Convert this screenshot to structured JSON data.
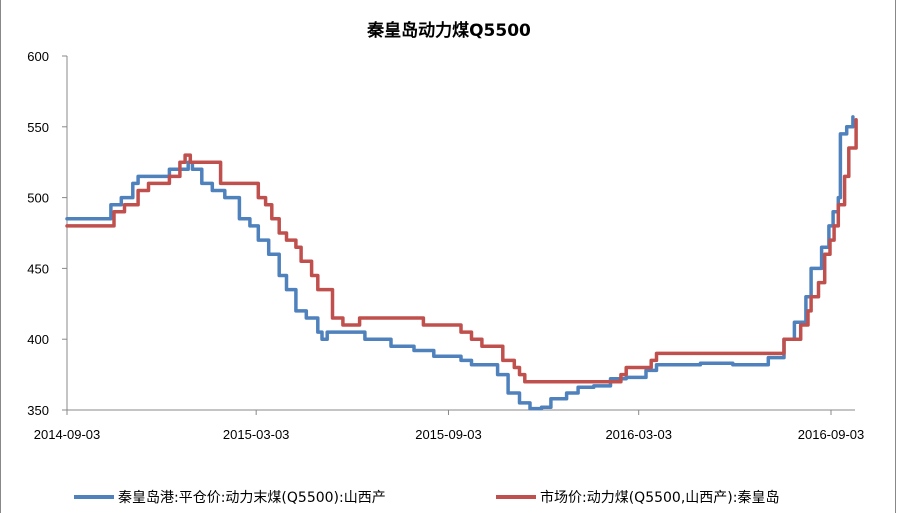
{
  "chart_data": {
    "type": "line",
    "title": "秦皇岛动力煤Q5500",
    "xlabel": "",
    "ylabel": "",
    "ylim": [
      350,
      600
    ],
    "yticks": [
      350,
      400,
      450,
      500,
      550,
      600
    ],
    "xticks": [
      "2014-09-03",
      "2015-03-03",
      "2015-09-03",
      "2016-03-03",
      "2016-09-03"
    ],
    "grid": false,
    "legend_position": "bottom",
    "series": [
      {
        "name": "秦皇岛港:平仓价:动力末煤(Q5500):山西产",
        "color": "#4F81BD",
        "points": [
          [
            "2014-09-03",
            485
          ],
          [
            "2014-10-10",
            485
          ],
          [
            "2014-10-15",
            495
          ],
          [
            "2014-10-25",
            500
          ],
          [
            "2014-11-05",
            510
          ],
          [
            "2014-11-10",
            515
          ],
          [
            "2014-12-01",
            515
          ],
          [
            "2014-12-10",
            520
          ],
          [
            "2014-12-25",
            520
          ],
          [
            "2014-12-28",
            525
          ],
          [
            "2015-01-01",
            520
          ],
          [
            "2015-01-10",
            510
          ],
          [
            "2015-01-20",
            505
          ],
          [
            "2015-02-01",
            500
          ],
          [
            "2015-02-15",
            485
          ],
          [
            "2015-02-25",
            480
          ],
          [
            "2015-03-05",
            470
          ],
          [
            "2015-03-15",
            460
          ],
          [
            "2015-03-25",
            445
          ],
          [
            "2015-04-01",
            435
          ],
          [
            "2015-04-10",
            420
          ],
          [
            "2015-04-20",
            415
          ],
          [
            "2015-05-01",
            405
          ],
          [
            "2015-05-05",
            400
          ],
          [
            "2015-05-10",
            405
          ],
          [
            "2015-06-10",
            405
          ],
          [
            "2015-06-15",
            400
          ],
          [
            "2015-07-10",
            395
          ],
          [
            "2015-08-01",
            392
          ],
          [
            "2015-08-20",
            388
          ],
          [
            "2015-09-15",
            385
          ],
          [
            "2015-09-25",
            382
          ],
          [
            "2015-10-10",
            382
          ],
          [
            "2015-10-20",
            375
          ],
          [
            "2015-10-30",
            362
          ],
          [
            "2015-11-10",
            355
          ],
          [
            "2015-11-20",
            351
          ],
          [
            "2015-12-01",
            352
          ],
          [
            "2015-12-10",
            358
          ],
          [
            "2015-12-25",
            362
          ],
          [
            "2016-01-05",
            366
          ],
          [
            "2016-01-20",
            367
          ],
          [
            "2016-02-05",
            372
          ],
          [
            "2016-02-20",
            373
          ],
          [
            "2016-03-10",
            378
          ],
          [
            "2016-03-20",
            382
          ],
          [
            "2016-05-01",
            383
          ],
          [
            "2016-06-01",
            382
          ],
          [
            "2016-06-25",
            382
          ],
          [
            "2016-07-05",
            387
          ],
          [
            "2016-07-20",
            400
          ],
          [
            "2016-07-30",
            412
          ],
          [
            "2016-08-10",
            430
          ],
          [
            "2016-08-15",
            450
          ],
          [
            "2016-08-25",
            465
          ],
          [
            "2016-09-01",
            480
          ],
          [
            "2016-09-05",
            490
          ],
          [
            "2016-09-10",
            500
          ],
          [
            "2016-09-12",
            545
          ],
          [
            "2016-09-18",
            550
          ],
          [
            "2016-09-24",
            557
          ]
        ]
      },
      {
        "name": "市场价:动力煤(Q5500,山西产):秦皇岛",
        "color": "#C0504D",
        "points": [
          [
            "2014-09-03",
            480
          ],
          [
            "2014-10-15",
            480
          ],
          [
            "2014-10-18",
            490
          ],
          [
            "2014-10-28",
            495
          ],
          [
            "2014-11-10",
            505
          ],
          [
            "2014-11-20",
            510
          ],
          [
            "2014-12-10",
            515
          ],
          [
            "2014-12-20",
            525
          ],
          [
            "2014-12-25",
            530
          ],
          [
            "2014-12-30",
            525
          ],
          [
            "2015-01-25",
            525
          ],
          [
            "2015-01-28",
            510
          ],
          [
            "2015-02-25",
            510
          ],
          [
            "2015-03-05",
            500
          ],
          [
            "2015-03-12",
            495
          ],
          [
            "2015-03-18",
            485
          ],
          [
            "2015-03-25",
            475
          ],
          [
            "2015-04-01",
            470
          ],
          [
            "2015-04-10",
            465
          ],
          [
            "2015-04-15",
            455
          ],
          [
            "2015-04-25",
            445
          ],
          [
            "2015-05-01",
            435
          ],
          [
            "2015-05-12",
            435
          ],
          [
            "2015-05-15",
            415
          ],
          [
            "2015-05-25",
            410
          ],
          [
            "2015-06-05",
            410
          ],
          [
            "2015-06-10",
            415
          ],
          [
            "2015-08-05",
            415
          ],
          [
            "2015-08-10",
            410
          ],
          [
            "2015-09-10",
            410
          ],
          [
            "2015-09-15",
            405
          ],
          [
            "2015-09-25",
            400
          ],
          [
            "2015-10-05",
            395
          ],
          [
            "2015-10-20",
            395
          ],
          [
            "2015-10-25",
            385
          ],
          [
            "2015-11-05",
            380
          ],
          [
            "2015-11-10",
            375
          ],
          [
            "2015-11-15",
            370
          ],
          [
            "2016-02-10",
            370
          ],
          [
            "2016-02-15",
            375
          ],
          [
            "2016-02-20",
            380
          ],
          [
            "2016-03-10",
            380
          ],
          [
            "2016-03-15",
            385
          ],
          [
            "2016-03-20",
            390
          ],
          [
            "2016-07-15",
            390
          ],
          [
            "2016-07-20",
            400
          ],
          [
            "2016-08-01",
            400
          ],
          [
            "2016-08-05",
            410
          ],
          [
            "2016-08-12",
            420
          ],
          [
            "2016-08-15",
            430
          ],
          [
            "2016-08-22",
            440
          ],
          [
            "2016-08-28",
            460
          ],
          [
            "2016-09-02",
            470
          ],
          [
            "2016-09-06",
            480
          ],
          [
            "2016-09-10",
            495
          ],
          [
            "2016-09-16",
            515
          ],
          [
            "2016-09-20",
            535
          ],
          [
            "2016-09-25",
            535
          ],
          [
            "2016-09-27",
            555
          ]
        ]
      }
    ]
  },
  "legend": {
    "blue": "秦皇岛港:平仓价:动力末煤(Q5500):山西产",
    "red": "市场价:动力煤(Q5500,山西产):秦皇岛"
  }
}
